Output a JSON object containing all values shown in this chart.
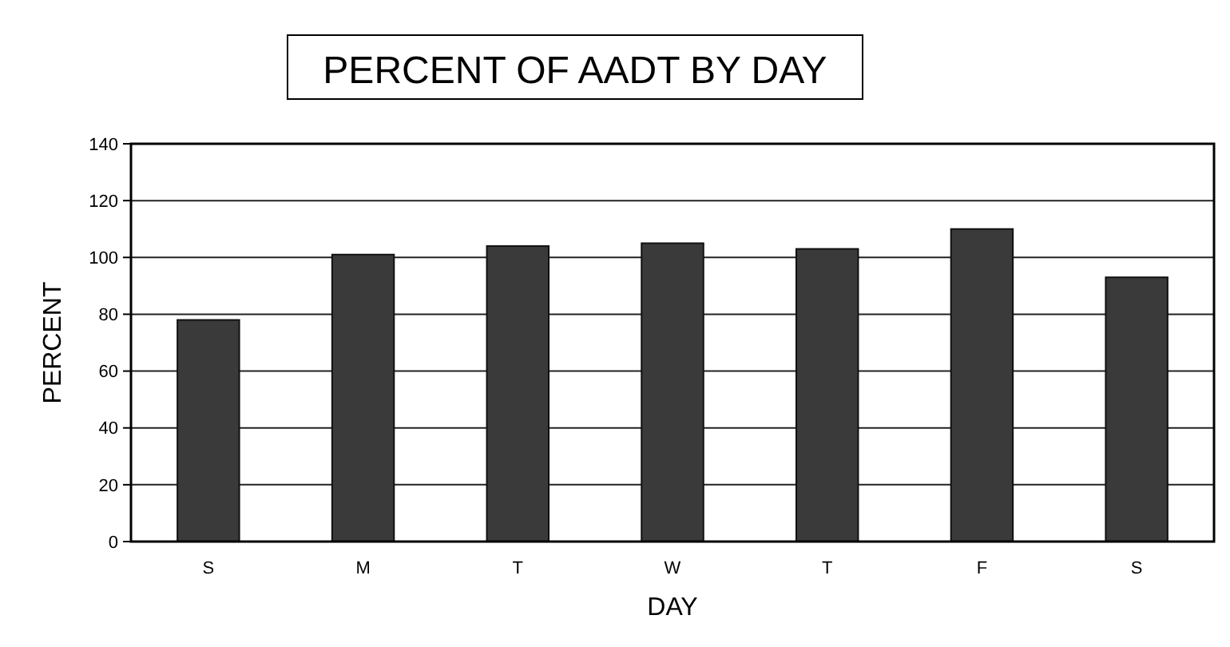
{
  "chart_data": {
    "type": "bar",
    "title": "PERCENT OF AADT BY DAY",
    "xlabel": "DAY",
    "ylabel": "PERCENT",
    "categories": [
      "S",
      "M",
      "T",
      "W",
      "T",
      "F",
      "S"
    ],
    "values": [
      78,
      101,
      104,
      105,
      103,
      110,
      93
    ],
    "color": "#3a3a3a",
    "ylim": [
      0,
      140
    ],
    "yticks": [
      0,
      20,
      40,
      60,
      80,
      100,
      120,
      140
    ],
    "grid": "y"
  }
}
